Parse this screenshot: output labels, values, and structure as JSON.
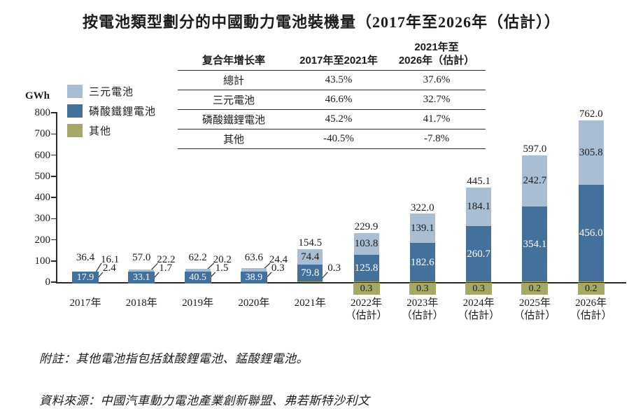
{
  "title": "按電池類型劃分的中國動力電池裝機量（2017年至2026年（估計））",
  "chart_data": {
    "type": "bar",
    "stacked": true,
    "title": "按電池類型劃分的中國動力電池裝機量（2017年至2026年（估計））",
    "unit": "GWh",
    "ylabel": "GWh",
    "ylim": [
      0,
      800
    ],
    "yticks": [
      0,
      100,
      200,
      300,
      400,
      500,
      600,
      700,
      800
    ],
    "grid": false,
    "legend_position": "top-left",
    "categories": [
      "2017年",
      "2018年",
      "2019年",
      "2020年",
      "2021年",
      "2022年\n（估計）",
      "2023年\n（估計）",
      "2024年\n（估計）",
      "2025年\n（估計）",
      "2026年\n（估計）"
    ],
    "series": [
      {
        "name": "三元電池",
        "color": "#a9bdd3",
        "values": [
          16.1,
          22.2,
          20.2,
          24.4,
          74.4,
          103.8,
          139.1,
          184.1,
          242.7,
          305.8
        ]
      },
      {
        "name": "磷酸鐵鋰電池",
        "color": "#44719c",
        "values": [
          17.9,
          33.1,
          40.5,
          38.9,
          79.8,
          125.8,
          182.6,
          260.7,
          354.1,
          456.0
        ]
      },
      {
        "name": "其他",
        "color": "#a5a767",
        "values": [
          2.4,
          1.7,
          1.5,
          0.3,
          0.3,
          0.3,
          0.3,
          0.3,
          0.2,
          0.2
        ]
      }
    ],
    "totals": [
      36.4,
      57.0,
      62.2,
      63.6,
      154.5,
      229.9,
      322.0,
      445.1,
      597.0,
      762.0
    ]
  },
  "cagr_table": {
    "header": {
      "col0": "复合年增长率",
      "col1": "2017年至2021年",
      "col2": "2021年至\n2026年（估計）"
    },
    "rows": [
      {
        "label": "總計",
        "v1": "43.5%",
        "v2": "37.6%"
      },
      {
        "label": "三元電池",
        "v1": "46.6%",
        "v2": "32.7%"
      },
      {
        "label": "磷酸鐵鋰電池",
        "v1": "45.2%",
        "v2": "41.7%"
      },
      {
        "label": "其他",
        "v1": "-40.5%",
        "v2": "-7.8%"
      }
    ]
  },
  "footnotes": {
    "note": "附註：其他電池指包括鈦酸鋰電池、錳酸鋰電池。",
    "source": "資料來源：中國汽車動力電池產業創新聯盟、弗若斯特沙利文"
  },
  "colors": {
    "axis": "#2b2b2b",
    "text": "#1c1c1c",
    "bar_label_light_text": "#1c1c1c",
    "bar_label_dark_text": "#ffffff"
  }
}
